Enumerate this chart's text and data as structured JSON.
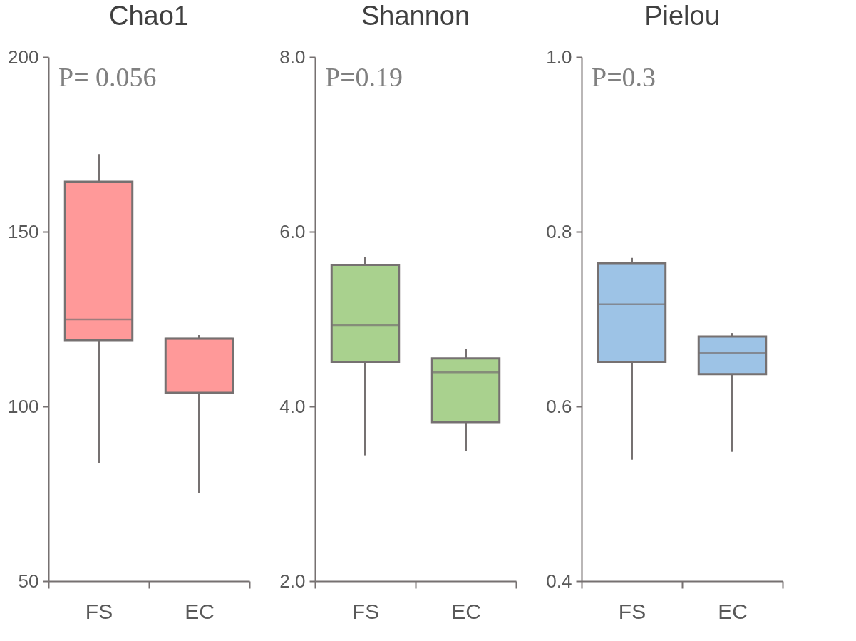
{
  "chart_data": [
    {
      "type": "box",
      "title": "Chao1",
      "categories": [
        "FS",
        "EC"
      ],
      "colors": [
        "#ff9999",
        "#ff9999"
      ],
      "boxes": [
        {
          "low": 83.7,
          "q1": 119,
          "median": 124.9,
          "q3": 164.3,
          "high": 172.2
        },
        {
          "low": 75.1,
          "q1": 103.9,
          "median": 119.4,
          "q3": 119.4,
          "high": 120.4
        }
      ],
      "ylim": [
        50,
        200
      ],
      "yticks": [
        50,
        100,
        150,
        200
      ],
      "grid": false,
      "annotations": [
        "P= 0.056"
      ]
    },
    {
      "type": "box",
      "title": "Shannon",
      "categories": [
        "FS",
        "EC"
      ],
      "colors": [
        "#a9d18e",
        "#a9d18e"
      ],
      "boxes": [
        {
          "low": 3.44,
          "q1": 4.51,
          "median": 4.93,
          "q3": 5.62,
          "high": 5.71
        },
        {
          "low": 3.49,
          "q1": 3.82,
          "median": 4.39,
          "q3": 4.55,
          "high": 4.66
        }
      ],
      "ylim": [
        2,
        8
      ],
      "yticks": [
        {
          "value": 2,
          "label": "2.0"
        },
        {
          "value": 4,
          "label": "4.0"
        },
        {
          "value": 6,
          "label": "6.0"
        },
        {
          "value": 8,
          "label": "8.0"
        }
      ],
      "grid": false,
      "annotations": [
        "P=0.19"
      ]
    },
    {
      "type": "box",
      "title": "Pielou",
      "categories": [
        "FS",
        "EC"
      ],
      "colors": [
        "#9dc3e6",
        "#9dc3e6"
      ],
      "boxes": [
        {
          "low": 0.539,
          "q1": 0.651,
          "median": 0.717,
          "q3": 0.764,
          "high": 0.77
        },
        {
          "low": 0.548,
          "q1": 0.637,
          "median": 0.661,
          "q3": 0.68,
          "high": 0.684
        }
      ],
      "ylim": [
        0.4,
        1.0
      ],
      "yticks": [
        0.4,
        0.6,
        0.8,
        {
          "value": 1.0,
          "label": "1.0"
        }
      ],
      "grid": false,
      "annotations": [
        "P=0.3"
      ]
    }
  ]
}
